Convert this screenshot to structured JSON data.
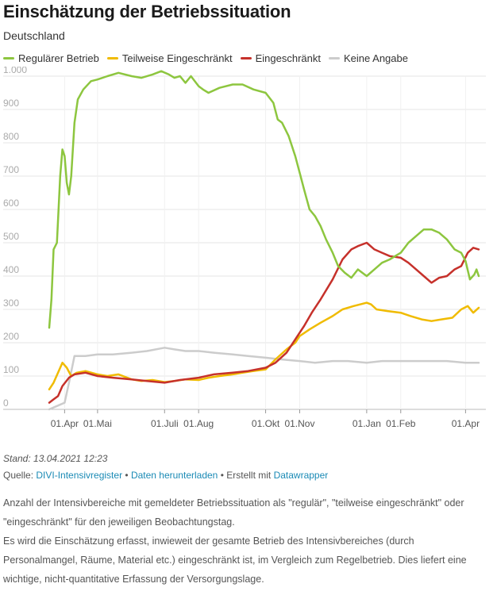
{
  "title": "Einschätzung der Betriebssituation",
  "subtitle": "Deutschland",
  "stand": "Stand: 13.04.2021 12:23",
  "source": {
    "prefix": "Quelle: ",
    "link1": "DIVI-Intensivregister",
    "sep1": " • ",
    "link2": "Daten herunterladen",
    "sep2": " • Erstellt mit ",
    "link3": "Datawrapper"
  },
  "note": {
    "p1": "Anzahl der Intensivbereiche mit gemeldeter Betriebssituation als \"regulär\", \"teilweise eingeschränkt\" oder \"eingeschränkt\" für den jeweiligen Beobachtungstag.",
    "p2": "Es wird die Einschätzung erfasst, inwieweit der gesamte Betrieb des Intensivbereiches (durch Personalmangel, Räume, Material etc.) eingeschränkt ist, im Vergleich zum Regelbetrieb. Dies liefert eine wichtige, nicht-quantitative Erfassung der Versorgungslage."
  },
  "chart_data": {
    "type": "line",
    "grid": true,
    "legend_position": "top-left",
    "x_range": [
      "2020-03-18",
      "2021-04-13"
    ],
    "ylim": [
      0,
      1000
    ],
    "y_ticks": [
      0,
      100,
      200,
      300,
      400,
      500,
      600,
      700,
      800,
      900,
      1000
    ],
    "y_tick_labels": [
      "0",
      "100",
      "200",
      "300",
      "400",
      "500",
      "600",
      "700",
      "800",
      "900",
      "1.000"
    ],
    "x_ticks": [
      {
        "date": "2020-04-01",
        "label": "01.Apr"
      },
      {
        "date": "2020-05-01",
        "label": "01.Mai"
      },
      {
        "date": "2020-07-01",
        "label": "01.Juli"
      },
      {
        "date": "2020-08-01",
        "label": "01.Aug"
      },
      {
        "date": "2020-10-01",
        "label": "01.Okt"
      },
      {
        "date": "2020-11-01",
        "label": "01.Nov"
      },
      {
        "date": "2021-01-01",
        "label": "01.Jan"
      },
      {
        "date": "2021-02-01",
        "label": "01.Feb"
      },
      {
        "date": "2021-04-01",
        "label": "01.Apr"
      }
    ],
    "series": [
      {
        "name": "Regulärer Betrieb",
        "color": "#8dc63f",
        "points": [
          [
            "2020-03-18",
            245
          ],
          [
            "2020-03-20",
            330
          ],
          [
            "2020-03-22",
            480
          ],
          [
            "2020-03-25",
            500
          ],
          [
            "2020-03-28",
            700
          ],
          [
            "2020-03-30",
            780
          ],
          [
            "2020-04-01",
            760
          ],
          [
            "2020-04-03",
            680
          ],
          [
            "2020-04-05",
            645
          ],
          [
            "2020-04-07",
            700
          ],
          [
            "2020-04-10",
            860
          ],
          [
            "2020-04-13",
            930
          ],
          [
            "2020-04-18",
            960
          ],
          [
            "2020-04-25",
            985
          ],
          [
            "2020-05-01",
            990
          ],
          [
            "2020-05-10",
            1000
          ],
          [
            "2020-05-20",
            1010
          ],
          [
            "2020-06-01",
            1000
          ],
          [
            "2020-06-10",
            995
          ],
          [
            "2020-06-20",
            1005
          ],
          [
            "2020-06-28",
            1015
          ],
          [
            "2020-07-05",
            1005
          ],
          [
            "2020-07-10",
            995
          ],
          [
            "2020-07-15",
            1000
          ],
          [
            "2020-07-20",
            980
          ],
          [
            "2020-07-25",
            1000
          ],
          [
            "2020-08-01",
            970
          ],
          [
            "2020-08-05",
            960
          ],
          [
            "2020-08-10",
            950
          ],
          [
            "2020-08-20",
            965
          ],
          [
            "2020-09-01",
            975
          ],
          [
            "2020-09-10",
            975
          ],
          [
            "2020-09-20",
            960
          ],
          [
            "2020-10-01",
            950
          ],
          [
            "2020-10-08",
            920
          ],
          [
            "2020-10-12",
            870
          ],
          [
            "2020-10-16",
            860
          ],
          [
            "2020-10-22",
            820
          ],
          [
            "2020-10-28",
            760
          ],
          [
            "2020-11-01",
            710
          ],
          [
            "2020-11-05",
            660
          ],
          [
            "2020-11-10",
            600
          ],
          [
            "2020-11-15",
            580
          ],
          [
            "2020-11-20",
            550
          ],
          [
            "2020-11-25",
            510
          ],
          [
            "2020-12-01",
            470
          ],
          [
            "2020-12-06",
            430
          ],
          [
            "2020-12-12",
            410
          ],
          [
            "2020-12-18",
            395
          ],
          [
            "2020-12-24",
            420
          ],
          [
            "2021-01-01",
            400
          ],
          [
            "2021-01-08",
            420
          ],
          [
            "2021-01-15",
            440
          ],
          [
            "2021-01-22",
            450
          ],
          [
            "2021-02-01",
            470
          ],
          [
            "2021-02-08",
            500
          ],
          [
            "2021-02-15",
            520
          ],
          [
            "2021-02-22",
            540
          ],
          [
            "2021-03-01",
            540
          ],
          [
            "2021-03-08",
            530
          ],
          [
            "2021-03-15",
            510
          ],
          [
            "2021-03-22",
            480
          ],
          [
            "2021-03-28",
            470
          ],
          [
            "2021-04-01",
            445
          ],
          [
            "2021-04-05",
            390
          ],
          [
            "2021-04-09",
            405
          ],
          [
            "2021-04-11",
            420
          ],
          [
            "2021-04-13",
            400
          ]
        ]
      },
      {
        "name": "Teilweise Eingeschränkt",
        "color": "#f0bb00",
        "points": [
          [
            "2020-03-18",
            60
          ],
          [
            "2020-03-22",
            80
          ],
          [
            "2020-03-26",
            110
          ],
          [
            "2020-03-30",
            140
          ],
          [
            "2020-04-03",
            125
          ],
          [
            "2020-04-07",
            100
          ],
          [
            "2020-04-12",
            110
          ],
          [
            "2020-04-20",
            115
          ],
          [
            "2020-05-01",
            105
          ],
          [
            "2020-05-10",
            100
          ],
          [
            "2020-05-20",
            105
          ],
          [
            "2020-06-01",
            90
          ],
          [
            "2020-06-10",
            85
          ],
          [
            "2020-06-20",
            88
          ],
          [
            "2020-07-01",
            82
          ],
          [
            "2020-07-10",
            85
          ],
          [
            "2020-07-20",
            90
          ],
          [
            "2020-08-01",
            88
          ],
          [
            "2020-08-10",
            95
          ],
          [
            "2020-08-20",
            100
          ],
          [
            "2020-09-01",
            105
          ],
          [
            "2020-09-10",
            110
          ],
          [
            "2020-09-20",
            115
          ],
          [
            "2020-10-01",
            120
          ],
          [
            "2020-10-10",
            150
          ],
          [
            "2020-10-20",
            180
          ],
          [
            "2020-10-28",
            200
          ],
          [
            "2020-11-01",
            220
          ],
          [
            "2020-11-10",
            240
          ],
          [
            "2020-11-20",
            260
          ],
          [
            "2020-12-01",
            280
          ],
          [
            "2020-12-10",
            300
          ],
          [
            "2020-12-20",
            310
          ],
          [
            "2021-01-01",
            320
          ],
          [
            "2021-01-05",
            315
          ],
          [
            "2021-01-10",
            300
          ],
          [
            "2021-01-20",
            295
          ],
          [
            "2021-02-01",
            290
          ],
          [
            "2021-02-10",
            280
          ],
          [
            "2021-02-20",
            270
          ],
          [
            "2021-03-01",
            265
          ],
          [
            "2021-03-10",
            270
          ],
          [
            "2021-03-20",
            275
          ],
          [
            "2021-03-28",
            300
          ],
          [
            "2021-04-03",
            310
          ],
          [
            "2021-04-08",
            290
          ],
          [
            "2021-04-13",
            305
          ]
        ]
      },
      {
        "name": "Eingeschränkt",
        "color": "#c6312b",
        "points": [
          [
            "2020-03-18",
            20
          ],
          [
            "2020-03-22",
            30
          ],
          [
            "2020-03-26",
            40
          ],
          [
            "2020-03-30",
            70
          ],
          [
            "2020-04-05",
            95
          ],
          [
            "2020-04-10",
            105
          ],
          [
            "2020-04-20",
            110
          ],
          [
            "2020-05-01",
            100
          ],
          [
            "2020-05-15",
            95
          ],
          [
            "2020-06-01",
            90
          ],
          [
            "2020-06-15",
            85
          ],
          [
            "2020-07-01",
            80
          ],
          [
            "2020-07-15",
            88
          ],
          [
            "2020-08-01",
            95
          ],
          [
            "2020-08-15",
            105
          ],
          [
            "2020-09-01",
            110
          ],
          [
            "2020-09-15",
            115
          ],
          [
            "2020-10-01",
            125
          ],
          [
            "2020-10-10",
            140
          ],
          [
            "2020-10-20",
            170
          ],
          [
            "2020-10-28",
            210
          ],
          [
            "2020-11-05",
            250
          ],
          [
            "2020-11-12",
            290
          ],
          [
            "2020-11-20",
            330
          ],
          [
            "2020-12-01",
            390
          ],
          [
            "2020-12-10",
            450
          ],
          [
            "2020-12-18",
            480
          ],
          [
            "2020-12-24",
            490
          ],
          [
            "2021-01-01",
            500
          ],
          [
            "2021-01-08",
            480
          ],
          [
            "2021-01-15",
            470
          ],
          [
            "2021-01-22",
            460
          ],
          [
            "2021-02-01",
            455
          ],
          [
            "2021-02-08",
            440
          ],
          [
            "2021-02-15",
            420
          ],
          [
            "2021-02-22",
            400
          ],
          [
            "2021-03-01",
            380
          ],
          [
            "2021-03-08",
            395
          ],
          [
            "2021-03-15",
            400
          ],
          [
            "2021-03-22",
            420
          ],
          [
            "2021-03-28",
            430
          ],
          [
            "2021-04-03",
            470
          ],
          [
            "2021-04-08",
            485
          ],
          [
            "2021-04-13",
            480
          ]
        ]
      },
      {
        "name": "Keine Angabe",
        "color": "#cccccc",
        "points": [
          [
            "2020-03-18",
            0
          ],
          [
            "2020-03-25",
            10
          ],
          [
            "2020-04-01",
            20
          ],
          [
            "2020-04-05",
            80
          ],
          [
            "2020-04-10",
            160
          ],
          [
            "2020-04-20",
            160
          ],
          [
            "2020-05-01",
            165
          ],
          [
            "2020-05-15",
            165
          ],
          [
            "2020-06-01",
            170
          ],
          [
            "2020-06-15",
            175
          ],
          [
            "2020-07-01",
            185
          ],
          [
            "2020-07-10",
            180
          ],
          [
            "2020-07-20",
            175
          ],
          [
            "2020-08-01",
            175
          ],
          [
            "2020-08-15",
            170
          ],
          [
            "2020-09-01",
            165
          ],
          [
            "2020-09-15",
            160
          ],
          [
            "2020-10-01",
            155
          ],
          [
            "2020-10-15",
            150
          ],
          [
            "2020-11-01",
            145
          ],
          [
            "2020-11-15",
            140
          ],
          [
            "2020-12-01",
            145
          ],
          [
            "2020-12-15",
            145
          ],
          [
            "2021-01-01",
            140
          ],
          [
            "2021-01-15",
            145
          ],
          [
            "2021-02-01",
            145
          ],
          [
            "2021-02-15",
            145
          ],
          [
            "2021-03-01",
            145
          ],
          [
            "2021-03-15",
            145
          ],
          [
            "2021-04-01",
            140
          ],
          [
            "2021-04-13",
            140
          ]
        ]
      }
    ]
  }
}
